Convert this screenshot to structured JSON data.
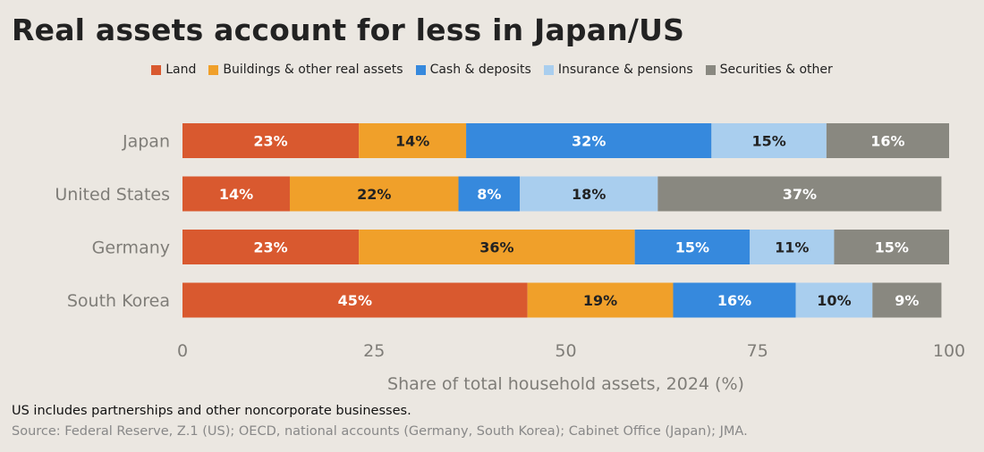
{
  "title": "Real assets account for less in Japan/US",
  "footnote": "US includes partnerships and other noncorporate businesses.",
  "source": "Source: Federal Reserve, Z.1 (US); OECD, national accounts (Germany, South Korea); Cabinet Office (Japan); JMA.",
  "chart_data": {
    "type": "bar",
    "orientation": "horizontal",
    "stacked": true,
    "title": "Real assets account for less in Japan/US",
    "xlabel": "Share of total household assets, 2024 (%)",
    "ylabel": "",
    "xlim": [
      0,
      100
    ],
    "xticks": [
      0,
      25,
      50,
      75,
      100
    ],
    "grid": false,
    "legend_position": "top",
    "categories": [
      "Japan",
      "United States",
      "Germany",
      "South Korea"
    ],
    "series": [
      {
        "name": "Land",
        "color": "#d9592f",
        "label_color": "#ffffff",
        "values": [
          23,
          14,
          23,
          45
        ]
      },
      {
        "name": "Buildings & other real assets",
        "color": "#f0a02a",
        "label_color": "#222222",
        "values": [
          14,
          22,
          36,
          19
        ]
      },
      {
        "name": "Cash & deposits",
        "color": "#3689dd",
        "label_color": "#ffffff",
        "values": [
          32,
          8,
          15,
          16
        ]
      },
      {
        "name": "Insurance & pensions",
        "color": "#a9ceee",
        "label_color": "#222222",
        "values": [
          15,
          18,
          11,
          10
        ]
      },
      {
        "name": "Securities & other",
        "color": "#898880",
        "label_color": "#ffffff",
        "values": [
          16,
          37,
          15,
          9
        ]
      }
    ],
    "value_suffix": "%"
  }
}
